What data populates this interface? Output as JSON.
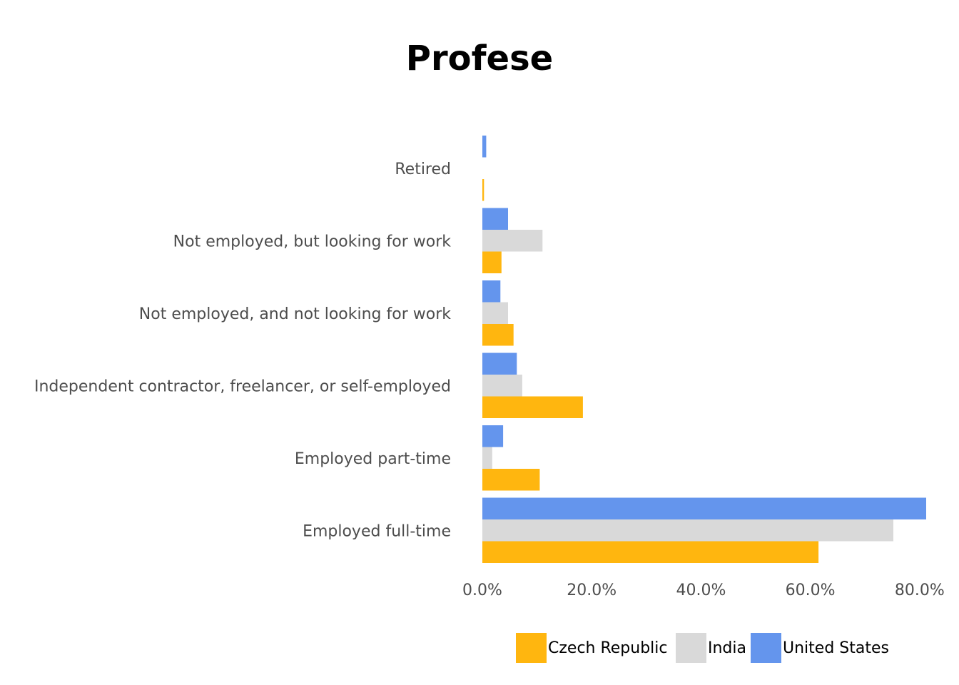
{
  "chart_data": {
    "type": "bar",
    "orientation": "horizontal",
    "title": "Profese",
    "xlabel": "",
    "ylabel": "",
    "categories": [
      "Retired",
      "Not employed, but looking for work",
      "Not employed, and not looking for work",
      "Independent contractor, freelancer, or self-employed",
      "Employed part-time",
      "Employed full-time"
    ],
    "series": [
      {
        "name": "Czech Republic",
        "color": "#FFB60F",
        "values": [
          0.3,
          3.5,
          5.7,
          18.4,
          10.5,
          61.5
        ]
      },
      {
        "name": "India",
        "color": "#D9D9D9",
        "values": [
          0.0,
          11.0,
          4.7,
          7.3,
          1.8,
          75.2
        ]
      },
      {
        "name": "United States",
        "color": "#6495ED",
        "values": [
          0.7,
          4.7,
          3.3,
          6.3,
          3.8,
          81.2
        ]
      }
    ],
    "xlim": [
      0,
      80
    ],
    "xticks": [
      "0.0%",
      "20.0%",
      "40.0%",
      "60.0%",
      "80.0%"
    ],
    "xtick_values": [
      0,
      20,
      40,
      60,
      80
    ],
    "grid": false,
    "legend_position": "bottom"
  }
}
